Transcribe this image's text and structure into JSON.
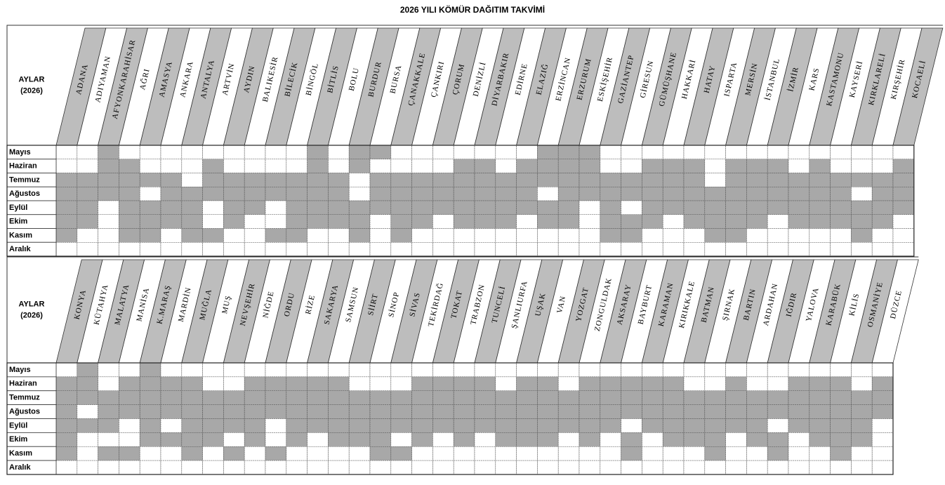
{
  "title": "2026 YILI KÖMÜR DAĞITIM TAKVİMİ",
  "aylar_label": "AYLAR",
  "year_label": "(2026)",
  "months": [
    "Mayıs",
    "Haziran",
    "Temmuz",
    "Ağustos",
    "Eylül",
    "Ekim",
    "Kasım",
    "Aralık"
  ],
  "tables": [
    {
      "provinces": [
        {
          "name": "ADANA",
          "shaded": [
            0,
            0,
            1,
            1,
            1,
            1,
            1,
            0
          ]
        },
        {
          "name": "ADIYAMAN",
          "shaded": [
            0,
            0,
            1,
            1,
            1,
            1,
            0,
            0
          ]
        },
        {
          "name": "AFYONKARAHİSAR",
          "shaded": [
            1,
            1,
            1,
            1,
            0,
            0,
            0,
            0
          ]
        },
        {
          "name": "AĞRI",
          "shaded": [
            0,
            1,
            1,
            1,
            1,
            1,
            1,
            0
          ]
        },
        {
          "name": "AMASYA",
          "shaded": [
            0,
            0,
            1,
            0,
            1,
            1,
            1,
            0
          ]
        },
        {
          "name": "ANKARA",
          "shaded": [
            0,
            0,
            1,
            1,
            1,
            1,
            0,
            0
          ]
        },
        {
          "name": "ANTALYA",
          "shaded": [
            0,
            0,
            0,
            1,
            1,
            1,
            1,
            0
          ]
        },
        {
          "name": "ARTVİN",
          "shaded": [
            0,
            1,
            1,
            1,
            0,
            0,
            1,
            0
          ]
        },
        {
          "name": "AYDIN",
          "shaded": [
            0,
            0,
            1,
            1,
            1,
            1,
            0,
            0
          ]
        },
        {
          "name": "BALIKESİR",
          "shaded": [
            0,
            0,
            1,
            1,
            1,
            0,
            0,
            0
          ]
        },
        {
          "name": "BİLECİK",
          "shaded": [
            0,
            0,
            1,
            1,
            0,
            0,
            1,
            0
          ]
        },
        {
          "name": "BİNGÖL",
          "shaded": [
            0,
            0,
            1,
            1,
            1,
            1,
            1,
            0
          ]
        },
        {
          "name": "BİTLİS",
          "shaded": [
            1,
            1,
            1,
            1,
            1,
            1,
            0,
            0
          ]
        },
        {
          "name": "BOLU",
          "shaded": [
            0,
            0,
            1,
            1,
            1,
            1,
            0,
            0
          ]
        },
        {
          "name": "BURDUR",
          "shaded": [
            1,
            1,
            0,
            0,
            1,
            1,
            1,
            0
          ]
        },
        {
          "name": "BURSA",
          "shaded": [
            1,
            0,
            1,
            1,
            1,
            0,
            0,
            0
          ]
        },
        {
          "name": "ÇANAKKALE",
          "shaded": [
            0,
            0,
            1,
            1,
            1,
            1,
            1,
            0
          ]
        },
        {
          "name": "ÇANKIRI",
          "shaded": [
            0,
            0,
            1,
            1,
            1,
            1,
            0,
            0
          ]
        },
        {
          "name": "ÇORUM",
          "shaded": [
            0,
            0,
            1,
            1,
            1,
            0,
            0,
            0
          ]
        },
        {
          "name": "DENİZLİ",
          "shaded": [
            0,
            1,
            1,
            1,
            1,
            1,
            0,
            0
          ]
        },
        {
          "name": "DİYARBAKIR",
          "shaded": [
            0,
            1,
            1,
            1,
            1,
            1,
            0,
            0
          ]
        },
        {
          "name": "EDİRNE",
          "shaded": [
            0,
            0,
            1,
            1,
            1,
            1,
            0,
            0
          ]
        },
        {
          "name": "ELAZIĞ",
          "shaded": [
            0,
            1,
            1,
            1,
            1,
            0,
            0,
            0
          ]
        },
        {
          "name": "ERZİNCAN",
          "shaded": [
            1,
            1,
            1,
            0,
            1,
            1,
            0,
            0
          ]
        },
        {
          "name": "ERZURUM",
          "shaded": [
            1,
            1,
            1,
            1,
            1,
            1,
            0,
            0
          ]
        },
        {
          "name": "ESKİŞEHİR",
          "shaded": [
            1,
            1,
            1,
            1,
            0,
            0,
            0,
            0
          ]
        },
        {
          "name": "GAZİANTEP",
          "shaded": [
            0,
            0,
            1,
            1,
            1,
            1,
            1,
            0
          ]
        },
        {
          "name": "GİRESUN",
          "shaded": [
            0,
            0,
            1,
            1,
            0,
            1,
            1,
            0
          ]
        },
        {
          "name": "GÜMÜŞHANE",
          "shaded": [
            0,
            1,
            1,
            1,
            1,
            1,
            0,
            0
          ]
        },
        {
          "name": "HAKKARİ",
          "shaded": [
            0,
            1,
            1,
            1,
            1,
            0,
            0,
            0
          ]
        },
        {
          "name": "HATAY",
          "shaded": [
            0,
            1,
            1,
            1,
            1,
            1,
            0,
            0
          ]
        },
        {
          "name": "ISPARTA",
          "shaded": [
            0,
            0,
            0,
            1,
            1,
            1,
            1,
            0
          ]
        },
        {
          "name": "MERSİN",
          "shaded": [
            0,
            1,
            1,
            1,
            1,
            1,
            1,
            0
          ]
        },
        {
          "name": "İSTANBUL",
          "shaded": [
            0,
            1,
            1,
            1,
            1,
            1,
            0,
            0
          ]
        },
        {
          "name": "İZMİR",
          "shaded": [
            0,
            1,
            1,
            1,
            1,
            0,
            0,
            0
          ]
        },
        {
          "name": "KARS",
          "shaded": [
            0,
            0,
            1,
            1,
            1,
            1,
            0,
            0
          ]
        },
        {
          "name": "KASTAMONU",
          "shaded": [
            0,
            1,
            1,
            1,
            1,
            1,
            0,
            0
          ]
        },
        {
          "name": "KAYSERİ",
          "shaded": [
            0,
            0,
            1,
            1,
            1,
            1,
            0,
            0
          ]
        },
        {
          "name": "KIRKLARELİ",
          "shaded": [
            0,
            0,
            1,
            0,
            1,
            1,
            1,
            0
          ]
        },
        {
          "name": "KIRŞEHİR",
          "shaded": [
            0,
            0,
            1,
            1,
            1,
            1,
            0,
            0
          ]
        },
        {
          "name": "KOCAELİ",
          "shaded": [
            0,
            1,
            1,
            1,
            1,
            0,
            0,
            0
          ]
        }
      ]
    },
    {
      "provinces": [
        {
          "name": "KONYA",
          "shaded": [
            0,
            1,
            1,
            1,
            1,
            1,
            1,
            0
          ]
        },
        {
          "name": "KÜTAHYA",
          "shaded": [
            1,
            1,
            1,
            0,
            1,
            0,
            0,
            0
          ]
        },
        {
          "name": "MALATYA",
          "shaded": [
            0,
            0,
            1,
            1,
            1,
            0,
            1,
            0
          ]
        },
        {
          "name": "MANİSA",
          "shaded": [
            0,
            1,
            1,
            1,
            0,
            0,
            1,
            0
          ]
        },
        {
          "name": "K.MARAŞ",
          "shaded": [
            1,
            1,
            1,
            1,
            1,
            1,
            0,
            0
          ]
        },
        {
          "name": "MARDİN",
          "shaded": [
            0,
            1,
            1,
            1,
            0,
            1,
            0,
            0
          ]
        },
        {
          "name": "MUĞLA",
          "shaded": [
            0,
            1,
            1,
            1,
            1,
            1,
            1,
            0
          ]
        },
        {
          "name": "MUŞ",
          "shaded": [
            0,
            0,
            1,
            1,
            1,
            1,
            0,
            0
          ]
        },
        {
          "name": "NEVŞEHİR",
          "shaded": [
            0,
            0,
            1,
            1,
            1,
            0,
            1,
            0
          ]
        },
        {
          "name": "NİĞDE",
          "shaded": [
            0,
            1,
            1,
            1,
            1,
            1,
            0,
            0
          ]
        },
        {
          "name": "ORDU",
          "shaded": [
            0,
            1,
            1,
            1,
            0,
            0,
            1,
            0
          ]
        },
        {
          "name": "RİZE",
          "shaded": [
            0,
            1,
            1,
            1,
            1,
            1,
            0,
            0
          ]
        },
        {
          "name": "SAKARYA",
          "shaded": [
            0,
            1,
            1,
            1,
            1,
            0,
            0,
            0
          ]
        },
        {
          "name": "SAMSUN",
          "shaded": [
            0,
            1,
            1,
            1,
            1,
            1,
            0,
            0
          ]
        },
        {
          "name": "SİİRT",
          "shaded": [
            0,
            0,
            1,
            1,
            1,
            1,
            0,
            0
          ]
        },
        {
          "name": "SİNOP",
          "shaded": [
            0,
            0,
            1,
            1,
            1,
            1,
            1,
            0
          ]
        },
        {
          "name": "SİVAS",
          "shaded": [
            0,
            0,
            1,
            1,
            1,
            0,
            1,
            0
          ]
        },
        {
          "name": "TEKİRDAĞ",
          "shaded": [
            0,
            1,
            1,
            1,
            1,
            1,
            0,
            0
          ]
        },
        {
          "name": "TOKAT",
          "shaded": [
            0,
            1,
            1,
            1,
            1,
            0,
            0,
            0
          ]
        },
        {
          "name": "TRABZON",
          "shaded": [
            0,
            1,
            1,
            1,
            1,
            1,
            0,
            0
          ]
        },
        {
          "name": "TUNCELİ",
          "shaded": [
            0,
            1,
            1,
            1,
            1,
            0,
            0,
            0
          ]
        },
        {
          "name": "ŞANLIURFA",
          "shaded": [
            0,
            0,
            1,
            1,
            1,
            1,
            0,
            0
          ]
        },
        {
          "name": "UŞAK",
          "shaded": [
            0,
            1,
            1,
            1,
            1,
            1,
            0,
            0
          ]
        },
        {
          "name": "VAN",
          "shaded": [
            0,
            1,
            1,
            1,
            1,
            1,
            0,
            0
          ]
        },
        {
          "name": "YOZGAT",
          "shaded": [
            0,
            0,
            1,
            1,
            1,
            0,
            0,
            0
          ]
        },
        {
          "name": "ZONGULDAK",
          "shaded": [
            0,
            1,
            1,
            1,
            1,
            1,
            0,
            0
          ]
        },
        {
          "name": "AKSARAY",
          "shaded": [
            0,
            1,
            1,
            1,
            1,
            0,
            0,
            0
          ]
        },
        {
          "name": "BAYBURT",
          "shaded": [
            0,
            1,
            1,
            1,
            0,
            1,
            1,
            0
          ]
        },
        {
          "name": "KARAMAN",
          "shaded": [
            0,
            1,
            1,
            1,
            1,
            0,
            0,
            0
          ]
        },
        {
          "name": "KIRIKKALE",
          "shaded": [
            0,
            1,
            1,
            1,
            1,
            1,
            0,
            0
          ]
        },
        {
          "name": "BATMAN",
          "shaded": [
            0,
            0,
            1,
            1,
            1,
            1,
            0,
            0
          ]
        },
        {
          "name": "ŞIRNAK",
          "shaded": [
            0,
            0,
            1,
            1,
            1,
            1,
            1,
            0
          ]
        },
        {
          "name": "BARTIN",
          "shaded": [
            0,
            1,
            1,
            1,
            1,
            0,
            0,
            0
          ]
        },
        {
          "name": "ARDAHAN",
          "shaded": [
            0,
            0,
            1,
            1,
            1,
            1,
            0,
            0
          ]
        },
        {
          "name": "IĞDIR",
          "shaded": [
            0,
            0,
            1,
            1,
            0,
            1,
            1,
            0
          ]
        },
        {
          "name": "YALOVA",
          "shaded": [
            0,
            1,
            1,
            1,
            1,
            0,
            0,
            0
          ]
        },
        {
          "name": "KARABÜK",
          "shaded": [
            0,
            1,
            1,
            1,
            1,
            1,
            0,
            0
          ]
        },
        {
          "name": "KİLİS",
          "shaded": [
            0,
            1,
            1,
            1,
            1,
            1,
            1,
            0
          ]
        },
        {
          "name": "OSMANİYE",
          "shaded": [
            0,
            0,
            1,
            1,
            1,
            1,
            0,
            0
          ]
        },
        {
          "name": "DÜZCE",
          "shaded": [
            0,
            1,
            1,
            1,
            0,
            0,
            0,
            0
          ]
        }
      ]
    }
  ]
}
